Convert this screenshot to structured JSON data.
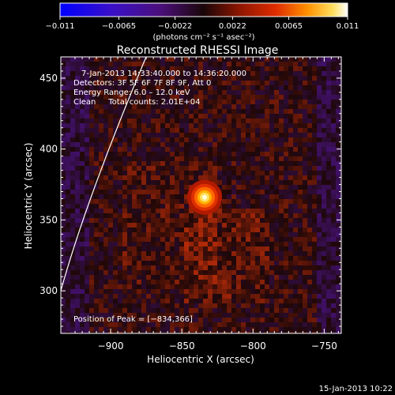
{
  "chart_data": {
    "type": "heatmap",
    "title": "Reconstructed RHESSI Image",
    "xlabel": "Heliocentric X (arcsec)",
    "ylabel": "Heliocentric Y (arcsec)",
    "xlim": [
      -935,
      -738
    ],
    "ylim": [
      270,
      465
    ],
    "x_ticks": [
      -900,
      -850,
      -800,
      -750
    ],
    "x_tick_labels": [
      "−900",
      "−850",
      "−800",
      "−750"
    ],
    "y_ticks": [
      300,
      350,
      400,
      450
    ],
    "y_tick_labels": [
      "300",
      "350",
      "400",
      "450"
    ],
    "colorbar": {
      "min": -0.011,
      "max": 0.011,
      "ticks": [
        -0.011,
        -0.0065,
        -0.0022,
        0.0022,
        0.0065,
        0.011
      ],
      "tick_labels": [
        "−0.011",
        "−0.0065",
        "−0.0022",
        "0.0022",
        "0.0065",
        "0.011"
      ],
      "label": "(photons cm⁻² s⁻¹ asec⁻²)"
    },
    "info_lines": [
      "7-Jan-2013 14:33:40.000 to 14:36:20.000",
      "Detectors: 3F 5F 6F 7F 8F 9F, Att 0",
      "Energy Range: 6.0 – 12.0 keV",
      "Clean     Total counts: 2.01E+04"
    ],
    "peak_label": "Position of Peak = [−834,366]",
    "peak": {
      "x": -834,
      "y": 366
    },
    "timestamp": "15-Jan-2013 10:22",
    "colors": {
      "background": "#000000",
      "negative": "#0000ff",
      "positive_low": "#a01800",
      "positive_high": "#ffffff"
    }
  }
}
